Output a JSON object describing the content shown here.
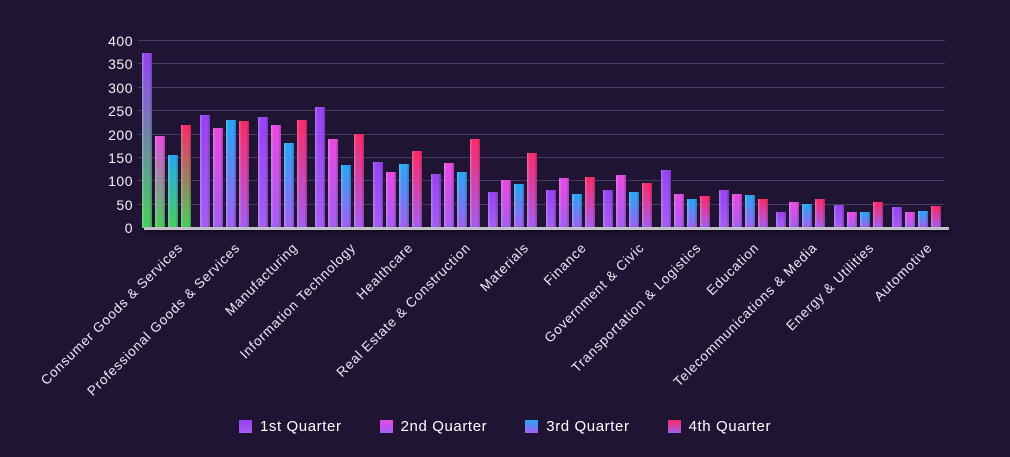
{
  "chart_data": {
    "type": "bar",
    "title": "",
    "xlabel": "",
    "ylabel": "",
    "ylim": [
      0,
      400
    ],
    "ytick_step": 50,
    "yticks": [
      0,
      50,
      100,
      150,
      200,
      250,
      300,
      350,
      400
    ],
    "grid": true,
    "legend_position": "bottom",
    "categories": [
      "Consumer Goods & Services",
      "Professional Goods & Services",
      "Manufacturing",
      "Information Technology",
      "Healthcare",
      "Real Estate & Construction",
      "Materials",
      "Finance",
      "Government & Civic",
      "Transportation & Logistics",
      "Education",
      "Telecommunications & Media",
      "Energy & Utilities",
      "Automotive"
    ],
    "series": [
      {
        "name": "1st Quarter",
        "values": [
          375,
          241,
          238,
          258,
          142,
          116,
          78,
          81,
          81,
          124,
          81,
          35,
          49,
          46
        ]
      },
      {
        "name": "2nd Quarter",
        "values": [
          196,
          213,
          220,
          190,
          120,
          139,
          103,
          108,
          113,
          72,
          73,
          56,
          35,
          34
        ]
      },
      {
        "name": "3rd Quarter",
        "values": [
          157,
          230,
          182,
          135,
          136,
          119,
          94,
          73,
          76,
          61,
          71,
          52,
          34,
          36
        ]
      },
      {
        "name": "4th Quarter",
        "values": [
          221,
          229,
          232,
          201,
          165,
          191,
          160,
          110,
          96,
          69,
          63,
          63,
          55,
          48
        ]
      }
    ],
    "colors": {
      "background": "#1f1433",
      "series_top": [
        "#9742f2",
        "#e84ae0",
        "#27a7f3",
        "#fa2a68"
      ],
      "gradient_bottom_default": "#a55ef2",
      "gradient_bottom_first_category": "#46d05c",
      "gridline": "#6a628a",
      "axis_line": "#c2c0cb",
      "tick_text": "#f3f2f7"
    }
  }
}
